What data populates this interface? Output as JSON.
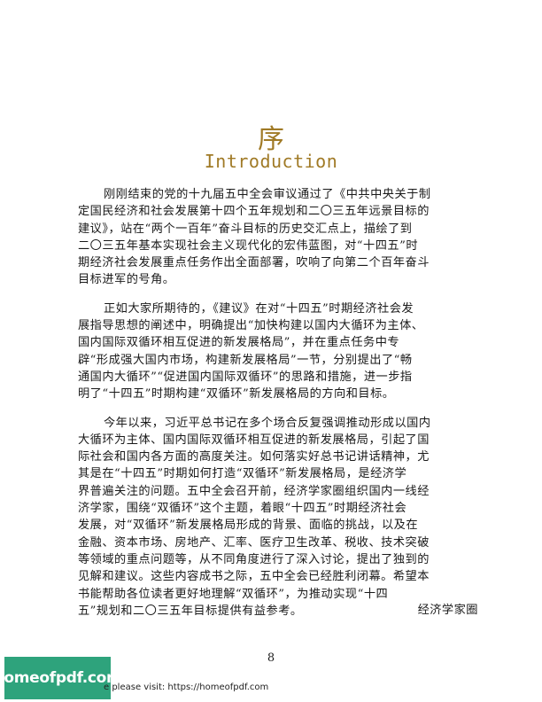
{
  "heading": {
    "title_cn": "序",
    "title_en": "Introduction"
  },
  "paragraphs": [
    {
      "lines": [
        "刚刚结束的党的十九届五中全会审议通过了《中共中央关于制",
        "定国民经济和社会发展第十四个五年规划和二〇三五年远景目标的",
        "建议》，站在“两个一百年”奋斗目标的历史交汇点上，描绘了到",
        "二〇三五年基本实现社会主义现代化的宏伟蓝图，对“十四五”时",
        "期经济社会发展重点任务作出全面部署，吹响了向第二个百年奋斗",
        "目标进军的号角。"
      ]
    },
    {
      "lines": [
        "正如大家所期待的，《建议》在对“十四五”时期经济社会发",
        "展指导思想的阐述中，明确提出“加快构建以国内大循环为主体、",
        "国内国际双循环相互促进的新发展格局”，并在重点任务中专",
        "辟“形成强大国内市场，构建新发展格局”一节，分别提出了“畅",
        "通国内大循环”“促进国内国际双循环”的思路和措施，进一步指",
        "明了“十四五”时期构建“双循环”新发展格局的方向和目标。"
      ]
    },
    {
      "lines": [
        "今年以来，习近平总书记在多个场合反复强调推动形成以国内",
        "大循环为主体、国内国际双循环相互促进的新发展格局，引起了国",
        "际社会和国内各方面的高度关注。如何落实好总书记讲话精神，尤",
        "其是在“十四五”时期如何打造“双循环”新发展格局，是经济学",
        "界普遍关注的问题。五中全会召开前，经济学家圈组织国内一线经",
        "济学家，围绕“双循环”这个主题，着眼“十四五”时期经济社会",
        "发展，对“双循环”新发展格局形成的背景、面临的挑战，以及在",
        "金融、资本市场、房地产、汇率、医疗卫生改革、税收、技术突破",
        "等领域的重点问题等，从不同角度进行了深入讨论，提出了独到的",
        "见解和建议。这些内容成书之际，五中全会已经胜利闭幕。希望本",
        "书能帮助各位读者更好地理解“双循环”，为推动实现“十四",
        "五”规划和二〇三五年目标提供有益参考。"
      ]
    }
  ],
  "signature": "经济学家圈",
  "page_number": "8",
  "watermark": {
    "badge_text": "homeofpdf.com",
    "footer_text": "e please visit: https://homeofpdf.com"
  },
  "colors": {
    "title": "#a07a26",
    "badge": "#2ea37c"
  }
}
